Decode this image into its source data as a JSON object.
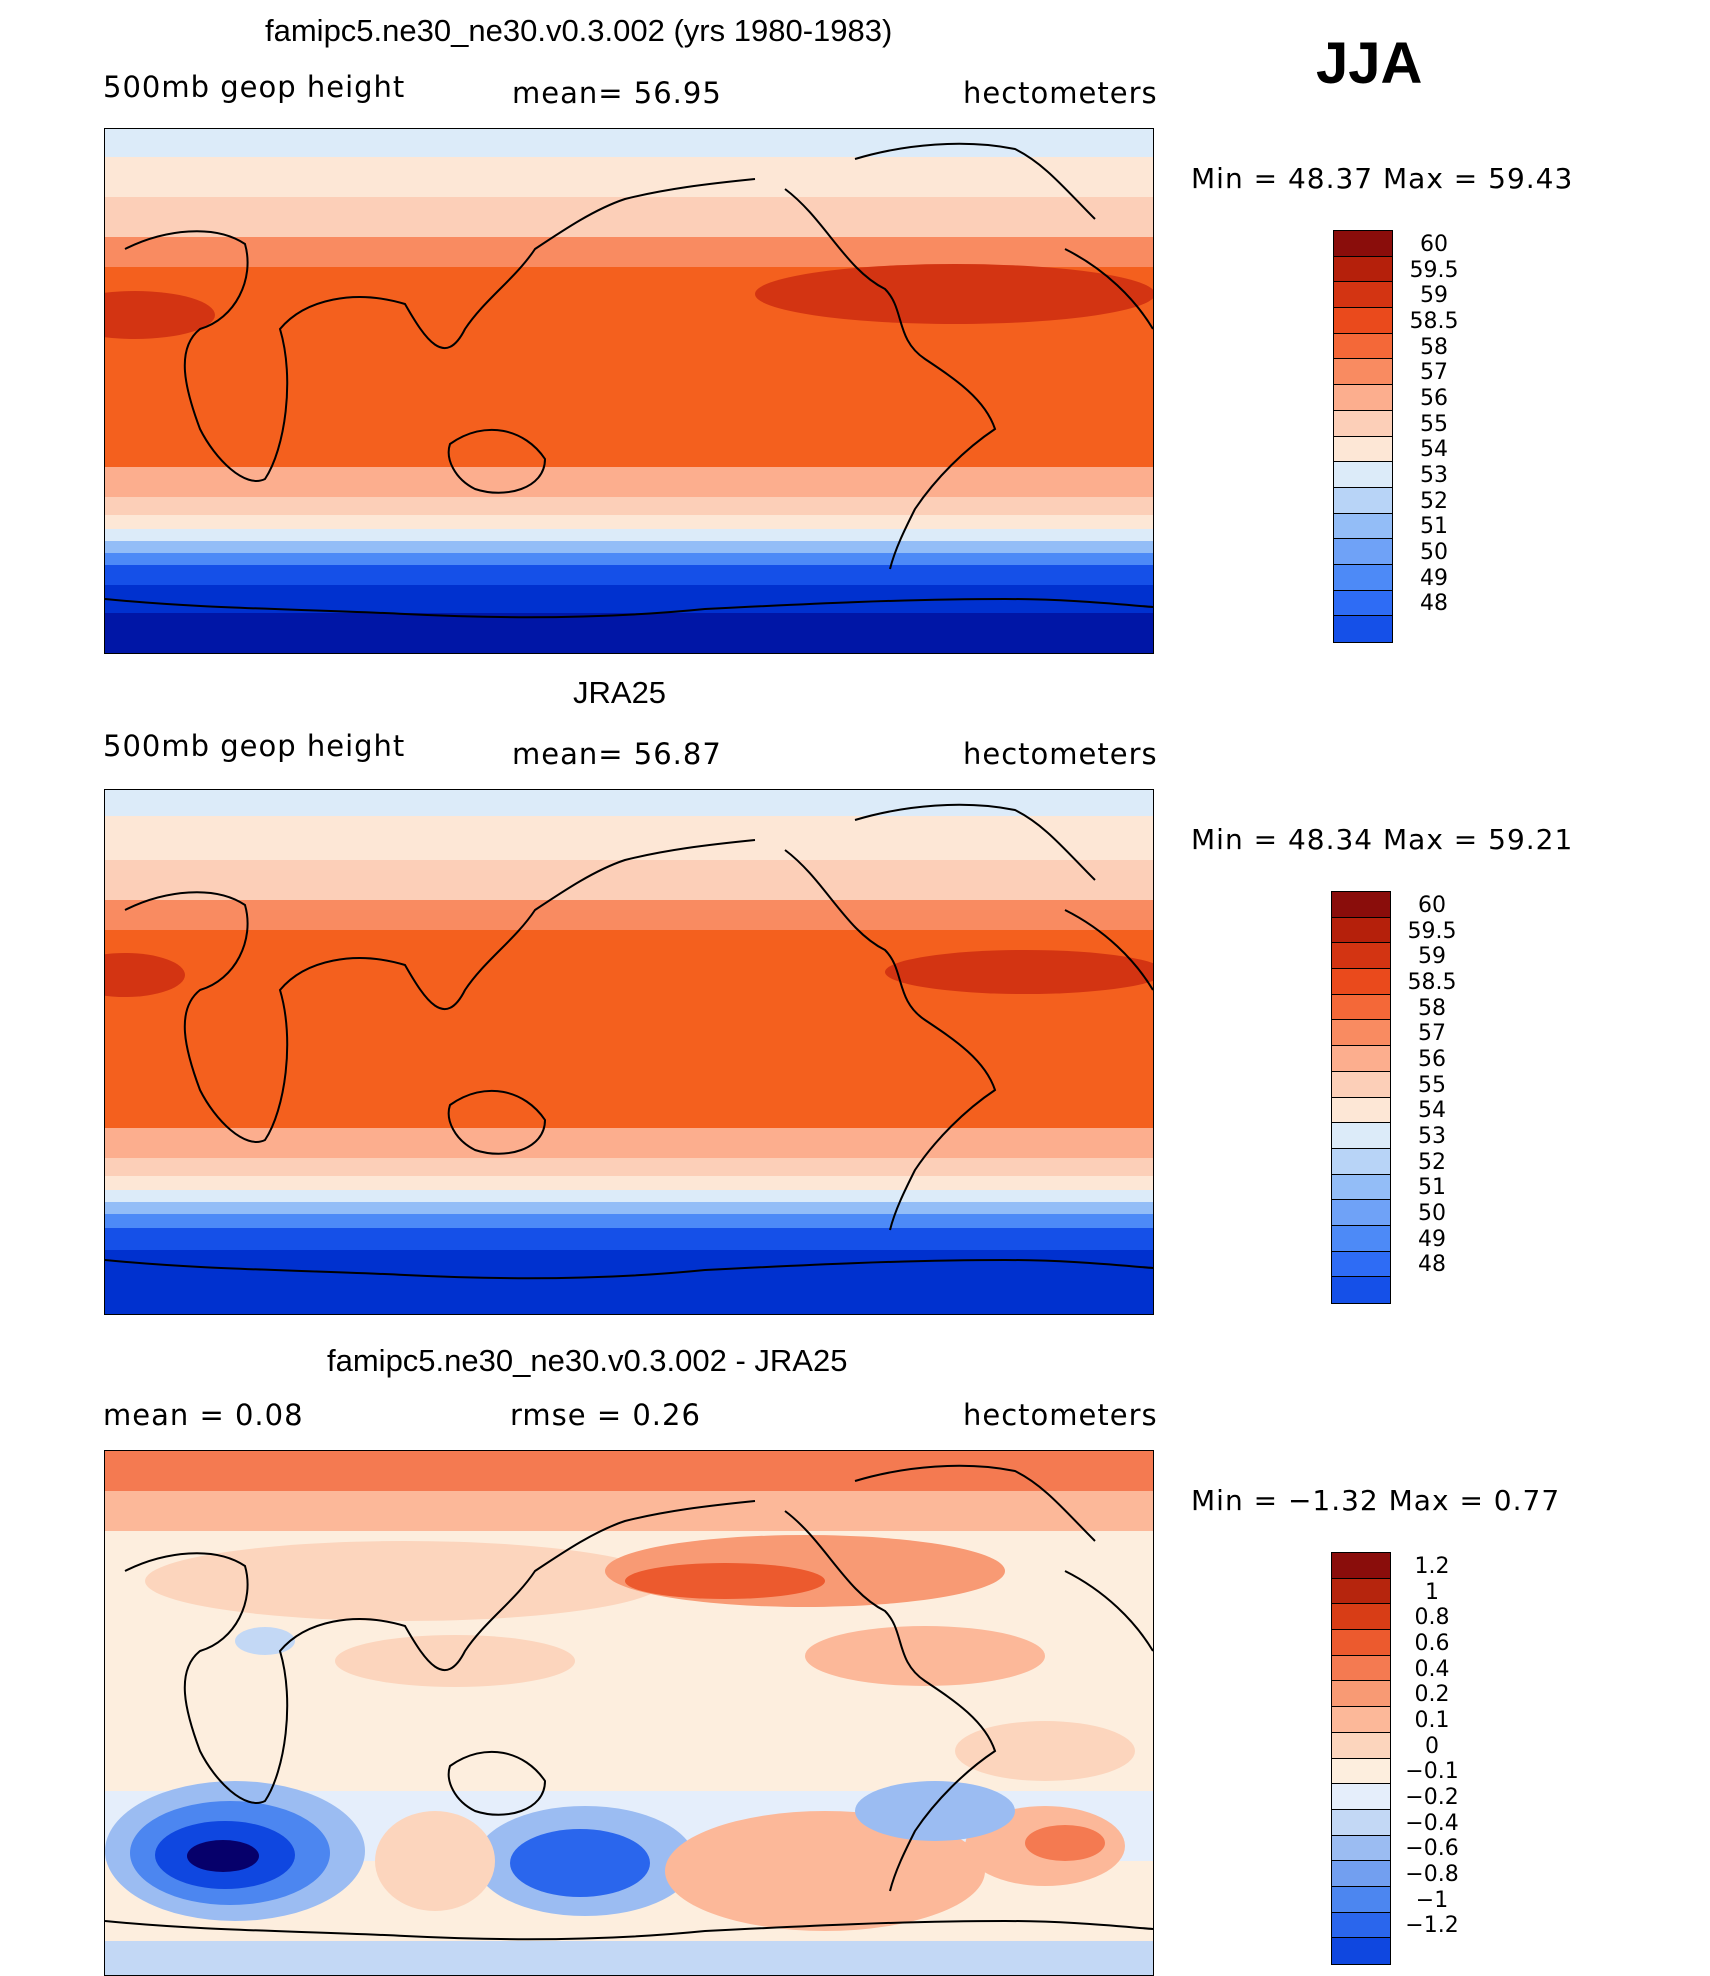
{
  "season": "JJA",
  "colors": {
    "abs_scale": [
      "#08006b",
      "#0016a6",
      "#0031cf",
      "#1550e8",
      "#2e6cf5",
      "#4d8af7",
      "#6fa2f7",
      "#93bdf7",
      "#b8d4f7",
      "#dcebf9",
      "#fde7d6",
      "#fccfb8",
      "#fcae8e",
      "#f98b61",
      "#f46838",
      "#ea4a1c",
      "#d33412",
      "#b5200b",
      "#8a0d0b"
    ],
    "diff_scale": [
      "#06006b",
      "#001599",
      "#002ec2",
      "#0f47e0",
      "#2a66ed",
      "#4c86f0",
      "#729ff0",
      "#9bbcf2",
      "#c3d8f5",
      "#e5eefb",
      "#fdeede",
      "#fcd5bd",
      "#fcb899",
      "#f89a74",
      "#f47a51",
      "#ec5a2e",
      "#d83d16",
      "#b6250d",
      "#8a0d0b"
    ]
  },
  "chart_data": [
    {
      "type": "heatmap",
      "title": "famipc5.ne30_ne30.v0.3.002 (yrs 1980-1983)",
      "left_label": "500mb geop height",
      "center_label": "mean=   56.95",
      "right_label": "hectometers",
      "minmax": "Min =   48.37 Max =   59.43",
      "min": 48.37,
      "max": 59.43,
      "mean": 56.95,
      "units": "hectometers",
      "colorbar_levels": [
        "60",
        "59.5",
        "59",
        "58.5",
        "58",
        "57",
        "56",
        "55",
        "54",
        "53",
        "52",
        "51",
        "50",
        "49",
        "48"
      ]
    },
    {
      "type": "heatmap",
      "title": "JRA25",
      "left_label": "500mb geop height",
      "center_label": "mean=   56.87",
      "right_label": "hectometers",
      "minmax": "Min =   48.34 Max =   59.21",
      "min": 48.34,
      "max": 59.21,
      "mean": 56.87,
      "units": "hectometers",
      "colorbar_levels": [
        "60",
        "59.5",
        "59",
        "58.5",
        "58",
        "57",
        "56",
        "55",
        "54",
        "53",
        "52",
        "51",
        "50",
        "49",
        "48"
      ]
    },
    {
      "type": "heatmap",
      "title": "famipc5.ne30_ne30.v0.3.002 - JRA25",
      "left_label": "mean =     0.08",
      "center_label": "rmse =     0.26",
      "right_label": "hectometers",
      "minmax": "Min =   −1.32 Max =     0.77",
      "min": -1.32,
      "max": 0.77,
      "mean": 0.08,
      "rmse": 0.26,
      "units": "hectometers",
      "colorbar_levels": [
        "1.2",
        "1",
        "0.8",
        "0.6",
        "0.4",
        "0.2",
        "0.1",
        "0",
        "−0.1",
        "−0.2",
        "−0.4",
        "−0.6",
        "−0.8",
        "−1",
        "−1.2"
      ]
    }
  ]
}
